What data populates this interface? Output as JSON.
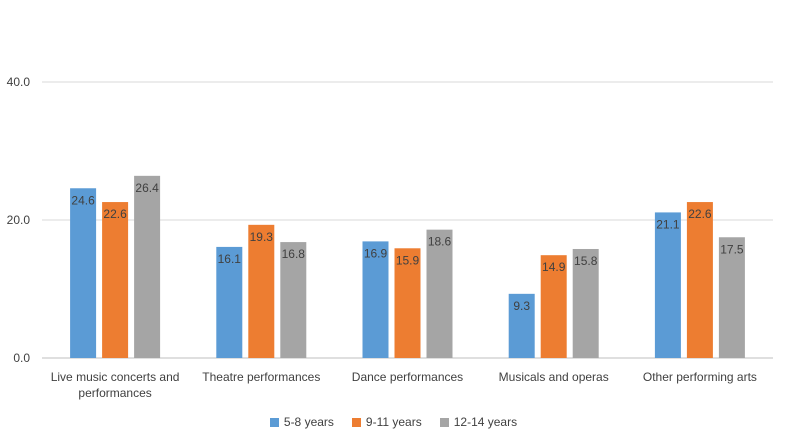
{
  "chart_data": {
    "type": "bar",
    "title": "",
    "xlabel": "",
    "ylabel": "",
    "ylim": [
      0,
      40
    ],
    "yticks": [
      "0.0",
      "20.0",
      "40.0"
    ],
    "grid": true,
    "legend_position": "bottom",
    "categories": [
      "Live music concerts and performances",
      "Theatre performances",
      "Dance performances",
      "Musicals and operas",
      "Other performing arts"
    ],
    "category_lines": [
      [
        "Live music concerts and",
        "performances"
      ],
      [
        "Theatre performances"
      ],
      [
        "Dance performances"
      ],
      [
        "Musicals and operas"
      ],
      [
        "Other performing arts"
      ]
    ],
    "series": [
      {
        "name": "5-8 years",
        "color": "#5b9bd5",
        "values": [
          24.6,
          16.1,
          16.9,
          9.3,
          21.1
        ]
      },
      {
        "name": "9-11 years",
        "color": "#ed7d31",
        "values": [
          22.6,
          19.3,
          15.9,
          14.9,
          22.6
        ]
      },
      {
        "name": "12-14 years",
        "color": "#a5a5a5",
        "values": [
          26.4,
          16.8,
          18.6,
          15.8,
          17.5
        ]
      }
    ]
  }
}
